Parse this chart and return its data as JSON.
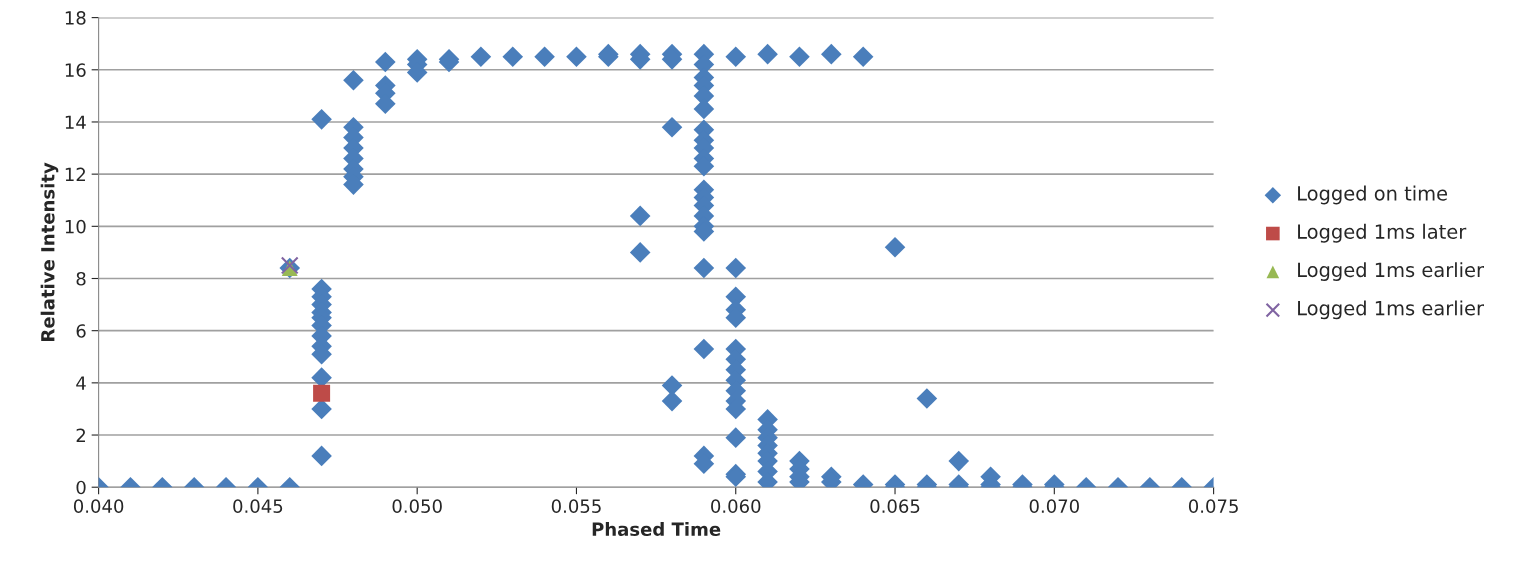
{
  "chart_data": {
    "type": "scatter",
    "xlabel": "Phased Time",
    "ylabel": "Relative Intensity",
    "xlim": [
      0.04,
      0.075
    ],
    "ylim": [
      0,
      18
    ],
    "xticks": [
      {
        "value": 0.04,
        "label": "0.040"
      },
      {
        "value": 0.045,
        "label": "0.045"
      },
      {
        "value": 0.05,
        "label": "0.050"
      },
      {
        "value": 0.055,
        "label": "0.055"
      },
      {
        "value": 0.06,
        "label": "0.060"
      },
      {
        "value": 0.065,
        "label": "0.065"
      },
      {
        "value": 0.07,
        "label": "0.070"
      },
      {
        "value": 0.075,
        "label": "0.075"
      }
    ],
    "yticks": [
      0,
      2,
      4,
      6,
      8,
      10,
      12,
      14,
      16,
      18
    ],
    "grid": "y",
    "legend": "right",
    "series": [
      {
        "name": "Logged on time",
        "color": "#4a7ebb",
        "marker": "diamond",
        "x": [
          0.04,
          0.041,
          0.042,
          0.043,
          0.044,
          0.045,
          0.046,
          0.046,
          0.047,
          0.047,
          0.047,
          0.047,
          0.047,
          0.047,
          0.047,
          0.047,
          0.047,
          0.047,
          0.047,
          0.047,
          0.047,
          0.048,
          0.048,
          0.048,
          0.048,
          0.048,
          0.048,
          0.048,
          0.048,
          0.049,
          0.049,
          0.049,
          0.049,
          0.05,
          0.05,
          0.05,
          0.051,
          0.051,
          0.052,
          0.053,
          0.054,
          0.055,
          0.056,
          0.056,
          0.057,
          0.057,
          0.057,
          0.057,
          0.058,
          0.058,
          0.058,
          0.058,
          0.058,
          0.059,
          0.059,
          0.059,
          0.059,
          0.059,
          0.059,
          0.059,
          0.059,
          0.059,
          0.059,
          0.059,
          0.059,
          0.059,
          0.059,
          0.059,
          0.059,
          0.059,
          0.059,
          0.059,
          0.059,
          0.059,
          0.06,
          0.06,
          0.06,
          0.06,
          0.06,
          0.06,
          0.06,
          0.06,
          0.06,
          0.06,
          0.06,
          0.06,
          0.06,
          0.06,
          0.06,
          0.061,
          0.061,
          0.061,
          0.061,
          0.061,
          0.061,
          0.061,
          0.061,
          0.061,
          0.062,
          0.062,
          0.062,
          0.062,
          0.062,
          0.063,
          0.063,
          0.063,
          0.064,
          0.064,
          0.065,
          0.065,
          0.065,
          0.066,
          0.066,
          0.066,
          0.067,
          0.067,
          0.067,
          0.068,
          0.068,
          0.068,
          0.069,
          0.069,
          0.07,
          0.07,
          0.071,
          0.072,
          0.073,
          0.074,
          0.075
        ],
        "values": [
          0,
          0,
          0,
          0,
          0,
          0,
          0,
          8.4,
          14.1,
          7.6,
          7.3,
          7.0,
          6.7,
          6.5,
          6.2,
          5.8,
          5.4,
          5.1,
          4.2,
          3.0,
          1.2,
          15.6,
          13.8,
          13.4,
          13.0,
          12.6,
          12.2,
          11.9,
          11.6,
          16.3,
          15.4,
          15.1,
          14.7,
          16.4,
          16.2,
          15.9,
          16.4,
          16.3,
          16.5,
          16.5,
          16.5,
          16.5,
          16.6,
          16.5,
          16.6,
          16.4,
          10.4,
          9.0,
          16.6,
          16.4,
          13.8,
          3.9,
          3.3,
          16.6,
          16.2,
          15.7,
          15.4,
          15.0,
          14.5,
          13.7,
          13.3,
          13.0,
          12.6,
          12.3,
          11.4,
          11.1,
          10.8,
          10.4,
          10.0,
          9.8,
          8.4,
          5.3,
          1.2,
          0.9,
          16.5,
          8.4,
          7.3,
          6.8,
          6.5,
          5.3,
          4.9,
          4.5,
          4.1,
          3.7,
          3.3,
          3.0,
          1.9,
          0.5,
          0.4,
          16.6,
          2.6,
          2.2,
          1.9,
          1.6,
          1.3,
          1.0,
          0.6,
          0.2,
          16.5,
          1.0,
          0.7,
          0.4,
          0.2,
          16.6,
          0.4,
          0.2,
          16.5,
          0.1,
          9.2,
          0.1,
          0,
          3.4,
          0.1,
          0,
          1.0,
          0.1,
          0,
          0.4,
          0.1,
          0,
          0.1,
          0,
          0.1,
          0,
          0,
          0,
          0,
          0,
          0
        ]
      },
      {
        "name": "Logged 1ms later",
        "color": "#be4b48",
        "marker": "square",
        "x": [
          0.047
        ],
        "values": [
          3.6
        ]
      },
      {
        "name": "Logged 1ms earlier",
        "color": "#98b954",
        "marker": "triangle",
        "x": [
          0.046
        ],
        "values": [
          8.4
        ]
      },
      {
        "name": "Logged 1ms earlier",
        "color": "#8064a2",
        "marker": "cross",
        "x": [
          0.046
        ],
        "values": [
          8.5
        ]
      }
    ]
  }
}
